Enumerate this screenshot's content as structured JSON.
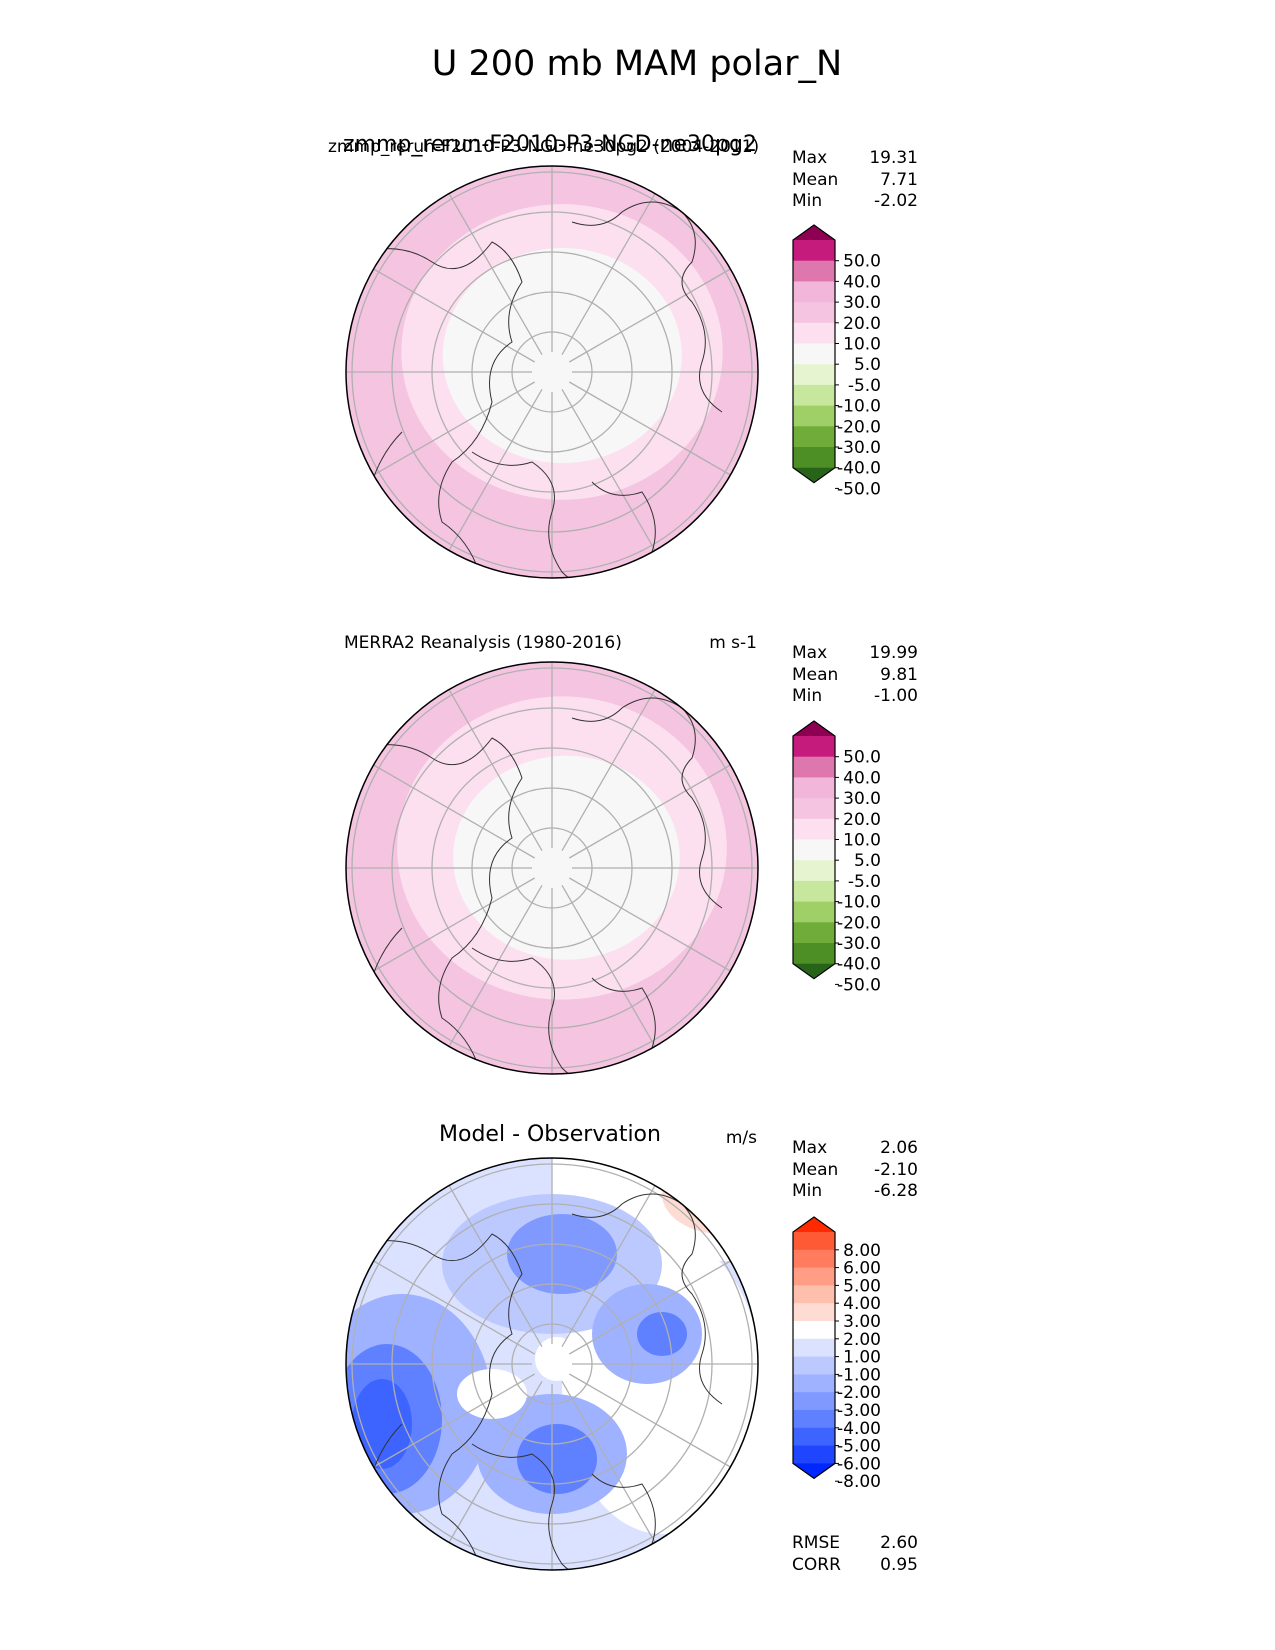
{
  "figure_title": "U 200 mb MAM polar_N",
  "chart_data": [
    {
      "type": "heatmap",
      "projection": "north-polar-stereographic",
      "title_left": "zmmp_rerun-F2010-P3-NGD-ne30pg2 (2004-2011)",
      "title_center": "zmmp_rerun-F2010-P3-NGD-ne30pg2",
      "units": "",
      "stats": {
        "max_label": "Max",
        "max": "19.31",
        "mean_label": "Mean",
        "mean": "7.71",
        "min_label": "Min",
        "min": "-2.02"
      },
      "colorbar": {
        "levels": [
          "50.0",
          "40.0",
          "30.0",
          "20.0",
          "10.0",
          "5.0",
          "-5.0",
          "-10.0",
          "-20.0",
          "-30.0",
          "-40.0",
          "-50.0"
        ],
        "colors": [
          "#8e0152",
          "#c51b7d",
          "#de77ae",
          "#f1b6da",
          "#f4c4e0",
          "#fde0ef",
          "#f7f7f7",
          "#e6f5d0",
          "#c7e89c",
          "#9fd068",
          "#70ac3a",
          "#4d8f25",
          "#276419"
        ]
      }
    },
    {
      "type": "heatmap",
      "projection": "north-polar-stereographic",
      "title_left": "MERRA2 Reanalysis (1980-2016)",
      "units": "m s-1",
      "stats": {
        "max_label": "Max",
        "max": "19.99",
        "mean_label": "Mean",
        "mean": "9.81",
        "min_label": "Min",
        "min": "-1.00"
      },
      "colorbar": {
        "levels": [
          "50.0",
          "40.0",
          "30.0",
          "20.0",
          "10.0",
          "5.0",
          "-5.0",
          "-10.0",
          "-20.0",
          "-30.0",
          "-40.0",
          "-50.0"
        ],
        "colors": [
          "#8e0152",
          "#c51b7d",
          "#de77ae",
          "#f1b6da",
          "#f4c4e0",
          "#fde0ef",
          "#f7f7f7",
          "#e6f5d0",
          "#c7e89c",
          "#9fd068",
          "#70ac3a",
          "#4d8f25",
          "#276419"
        ]
      }
    },
    {
      "type": "heatmap",
      "projection": "north-polar-stereographic",
      "title_center": "Model - Observation",
      "units": "m/s",
      "stats": {
        "max_label": "Max",
        "max": "2.06",
        "mean_label": "Mean",
        "mean": "-2.10",
        "min_label": "Min",
        "min": "-6.28",
        "rmse_label": "RMSE",
        "rmse": "2.60",
        "corr_label": "CORR",
        "corr": "0.95"
      },
      "colorbar": {
        "levels": [
          "8.00",
          "6.00",
          "5.00",
          "4.00",
          "3.00",
          "2.00",
          "1.00",
          "-1.00",
          "-2.00",
          "-3.00",
          "-4.00",
          "-5.00",
          "-6.00",
          "-8.00"
        ],
        "colors": [
          "#ff2a00",
          "#ff5a36",
          "#ff7d5e",
          "#ff9e85",
          "#ffbfad",
          "#ffdcd3",
          "#ffffff",
          "#dbe2ff",
          "#bcc9ff",
          "#9fb2ff",
          "#8099ff",
          "#5f80ff",
          "#3d64ff",
          "#1f45ff",
          "#0027ff"
        ]
      }
    }
  ]
}
